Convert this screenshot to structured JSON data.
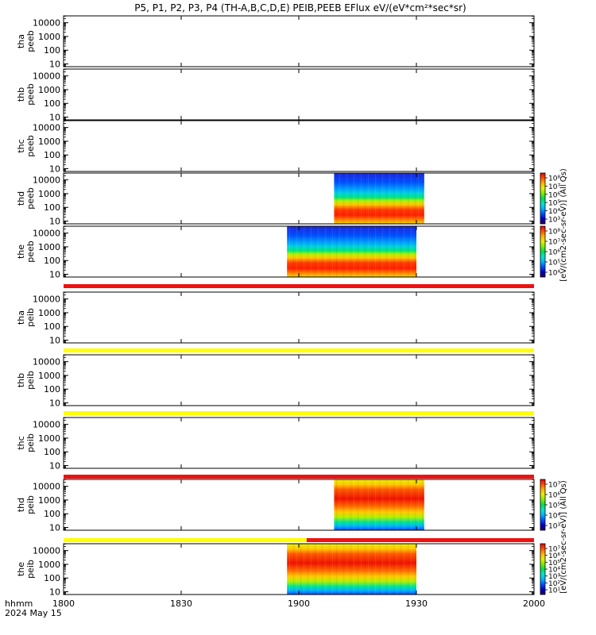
{
  "title": "P5, P1, P2, P3, P4 (TH-A,B,C,D,E) PEIB,PEEB EFlux eV/(eV*cm²*sec*sr)",
  "x_unit_label": "hhmm",
  "date_label": "2024 May 15",
  "colorbar_colors": [
    "#2a004e",
    "#0000c8",
    "#0050ff",
    "#00b4ff",
    "#00e6c8",
    "#00dc50",
    "#78f000",
    "#e6f000",
    "#ffb400",
    "#ff5000",
    "#e60000"
  ],
  "bar_colors": {
    "red": "#ee1111",
    "yellow": "#ffff00"
  },
  "chart_data": {
    "type": "heatmap",
    "x_ticks": [
      "1800",
      "1830",
      "1900",
      "1930",
      "2000"
    ],
    "x_range_hhmm": [
      "1800",
      "2000"
    ],
    "y_scale": "log",
    "panels": [
      {
        "id": "tha_peeb",
        "label": [
          "tha",
          "peeb"
        ],
        "y_ticks": [
          "10000",
          "1000",
          "100",
          "10"
        ],
        "has_data": false
      },
      {
        "id": "thb_peeb",
        "label": [
          "thb",
          "peeb"
        ],
        "y_ticks": [
          "10000",
          "1000",
          "100",
          "10"
        ],
        "has_data": false
      },
      {
        "id": "thc_peeb",
        "label": [
          "thc",
          "peeb"
        ],
        "y_ticks": [
          "10000",
          "1000",
          "100",
          "10"
        ],
        "has_data": false
      },
      {
        "id": "thd_peeb",
        "label": [
          "thd",
          "peeb"
        ],
        "y_ticks": [
          "10000",
          "1000",
          "100",
          "10"
        ],
        "has_data": true,
        "data_start_hhmm": "1909",
        "data_end_hhmm": "1932",
        "style": "electron"
      },
      {
        "id": "the_peeb",
        "label": [
          "the",
          "peeb"
        ],
        "y_ticks": [
          "10000",
          "1000",
          "100",
          "10"
        ],
        "has_data": true,
        "data_start_hhmm": "1857",
        "data_end_hhmm": "1930",
        "style": "electron"
      },
      {
        "id": "tha_peib",
        "label": [
          "tha",
          "peib"
        ],
        "y_ticks": [
          "10000",
          "1000",
          "100",
          "10"
        ],
        "has_data": false
      },
      {
        "id": "thb_peib",
        "label": [
          "thb",
          "peib"
        ],
        "y_ticks": [
          "10000",
          "1000",
          "100",
          "10"
        ],
        "has_data": false
      },
      {
        "id": "thc_peib",
        "label": [
          "thc",
          "peib"
        ],
        "y_ticks": [
          "10000",
          "1000",
          "100",
          "10"
        ],
        "has_data": false
      },
      {
        "id": "thd_peib",
        "label": [
          "thd",
          "peib"
        ],
        "y_ticks": [
          "10000",
          "1000",
          "100",
          "10"
        ],
        "has_data": true,
        "data_start_hhmm": "1909",
        "data_end_hhmm": "1932",
        "style": "ion"
      },
      {
        "id": "the_peib",
        "label": [
          "the",
          "peib"
        ],
        "y_ticks": [
          "10000",
          "1000",
          "100",
          "10"
        ],
        "has_data": true,
        "data_start_hhmm": "1857",
        "data_end_hhmm": "1930",
        "style": "ion"
      }
    ],
    "status_bars": [
      {
        "after_panel": 4,
        "segments": [
          {
            "color": "red",
            "start": "1800",
            "end": "2000"
          }
        ]
      },
      {
        "after_panel": 5,
        "segments": [
          {
            "color": "yellow",
            "start": "1800",
            "end": "2000"
          }
        ]
      },
      {
        "after_panel": 6,
        "segments": [
          {
            "color": "yellow",
            "start": "1800",
            "end": "2000"
          }
        ]
      },
      {
        "after_panel": 7,
        "segments": [
          {
            "color": "red",
            "start": "1800",
            "end": "2000"
          }
        ]
      },
      {
        "after_panel": 8,
        "segments": [
          {
            "color": "yellow",
            "start": "1800",
            "end": "1902"
          },
          {
            "color": "red",
            "start": "1902",
            "end": "2000"
          }
        ]
      }
    ],
    "colorbars": [
      {
        "id": "cb-thd-peeb",
        "panels": [
          3
        ],
        "ticks": [
          "10⁸",
          "10⁷",
          "10⁶",
          "10⁵",
          "10⁴",
          "10³"
        ]
      },
      {
        "id": "cb-the-peeb",
        "panels": [
          4
        ],
        "ticks": [
          "10⁸",
          "10⁷",
          "10⁶",
          "10⁵",
          "10⁴"
        ]
      },
      {
        "id": "cb-thd-peib",
        "panels": [
          8
        ],
        "ticks": [
          "10⁷",
          "10⁶",
          "10⁵",
          "10⁴",
          "10³"
        ]
      },
      {
        "id": "cb-the-peib",
        "panels": [
          9
        ],
        "ticks": [
          "10⁷",
          "10⁶",
          "10⁵",
          "10⁴",
          "10³",
          "10²",
          "10¹"
        ]
      }
    ],
    "colorbar_titles": [
      {
        "panels": [
          3,
          4
        ],
        "text": "[eV/(cm2-sec-sr-eV)] (All Qs)"
      },
      {
        "panels": [
          8,
          9
        ],
        "text": "[eV/(cm2-sec-sr-eV)] (All Qs)"
      }
    ]
  }
}
